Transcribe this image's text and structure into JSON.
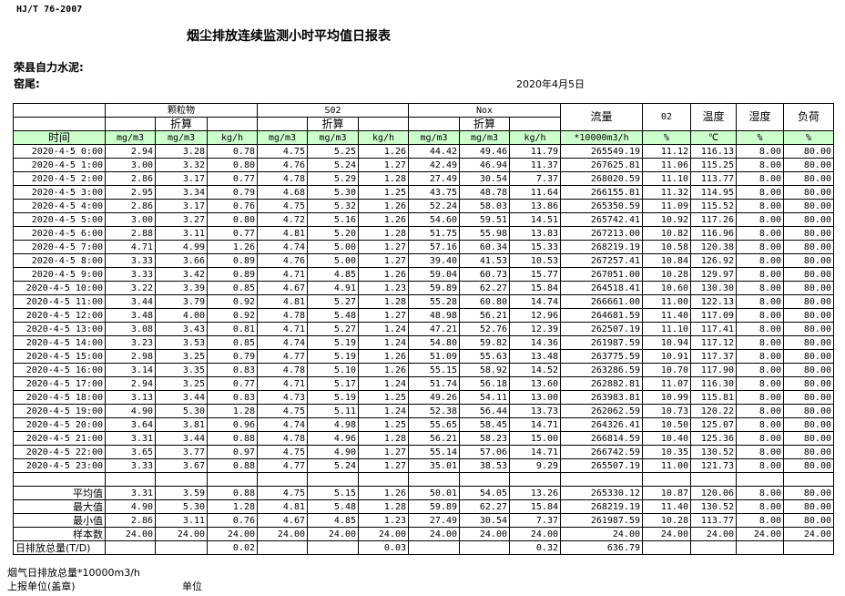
{
  "header": {
    "standard": "HJ/T  76-2007",
    "title": "烟尘排放连续监测小时平均值日报表",
    "company": "荣县自力水泥:",
    "kiln": "窑尾:",
    "date": "2020年4月5日"
  },
  "table": {
    "groups": {
      "particulate": "颗粒物",
      "so2": "S02",
      "nox": "Nox",
      "flow": "流量",
      "o2": "02",
      "temp": "温度",
      "humidity": "湿度",
      "load": "负荷",
      "converted": "折算"
    },
    "units": [
      "时间",
      "mg/m3",
      "mg/m3",
      "kg/h",
      "mg/m3",
      "mg/m3",
      "kg/h",
      "mg/m3",
      "mg/m3",
      "kg/h",
      "*10000m3/h",
      "%",
      "℃",
      "%",
      "%"
    ],
    "rows": [
      [
        "2020-4-5 0:00",
        "2.94",
        "3.28",
        "0.78",
        "4.75",
        "5.25",
        "1.26",
        "44.42",
        "49.46",
        "11.79",
        "265549.19",
        "11.12",
        "116.13",
        "8.00",
        "80.00"
      ],
      [
        "2020-4-5 1:00",
        "3.00",
        "3.32",
        "0.80",
        "4.76",
        "5.24",
        "1.27",
        "42.49",
        "46.94",
        "11.37",
        "267625.81",
        "11.06",
        "115.25",
        "8.00",
        "80.00"
      ],
      [
        "2020-4-5 2:00",
        "2.86",
        "3.17",
        "0.77",
        "4.78",
        "5.29",
        "1.28",
        "27.49",
        "30.54",
        "7.37",
        "268020.59",
        "11.10",
        "113.77",
        "8.00",
        "80.00"
      ],
      [
        "2020-4-5 3:00",
        "2.95",
        "3.34",
        "0.79",
        "4.68",
        "5.30",
        "1.25",
        "43.75",
        "48.78",
        "11.64",
        "266155.81",
        "11.32",
        "114.95",
        "8.00",
        "80.00"
      ],
      [
        "2020-4-5 4:00",
        "2.86",
        "3.17",
        "0.76",
        "4.75",
        "5.32",
        "1.26",
        "52.24",
        "58.03",
        "13.86",
        "265350.59",
        "11.09",
        "115.52",
        "8.00",
        "80.00"
      ],
      [
        "2020-4-5 5:00",
        "3.00",
        "3.27",
        "0.80",
        "4.72",
        "5.16",
        "1.26",
        "54.60",
        "59.51",
        "14.51",
        "265742.41",
        "10.92",
        "117.26",
        "8.00",
        "80.00"
      ],
      [
        "2020-4-5 6:00",
        "2.88",
        "3.11",
        "0.77",
        "4.81",
        "5.20",
        "1.28",
        "51.75",
        "55.98",
        "13.83",
        "267213.00",
        "10.82",
        "116.96",
        "8.00",
        "80.00"
      ],
      [
        "2020-4-5 7:00",
        "4.71",
        "4.99",
        "1.26",
        "4.74",
        "5.00",
        "1.27",
        "57.16",
        "60.34",
        "15.33",
        "268219.19",
        "10.58",
        "120.38",
        "8.00",
        "80.00"
      ],
      [
        "2020-4-5 8:00",
        "3.33",
        "3.66",
        "0.89",
        "4.76",
        "5.00",
        "1.27",
        "39.40",
        "41.53",
        "10.53",
        "267257.41",
        "10.84",
        "126.92",
        "8.00",
        "80.00"
      ],
      [
        "2020-4-5 9:00",
        "3.33",
        "3.42",
        "0.89",
        "4.71",
        "4.85",
        "1.26",
        "59.04",
        "60.73",
        "15.77",
        "267051.00",
        "10.28",
        "129.97",
        "8.00",
        "80.00"
      ],
      [
        "2020-4-5 10:00",
        "3.22",
        "3.39",
        "0.85",
        "4.67",
        "4.91",
        "1.23",
        "59.89",
        "62.27",
        "15.84",
        "264518.41",
        "10.60",
        "130.30",
        "8.00",
        "80.00"
      ],
      [
        "2020-4-5 11:00",
        "3.44",
        "3.79",
        "0.92",
        "4.81",
        "5.27",
        "1.28",
        "55.28",
        "60.80",
        "14.74",
        "266661.00",
        "11.00",
        "122.13",
        "8.00",
        "80.00"
      ],
      [
        "2020-4-5 12:00",
        "3.48",
        "4.00",
        "0.92",
        "4.78",
        "5.48",
        "1.27",
        "48.98",
        "56.21",
        "12.96",
        "264681.59",
        "11.40",
        "117.09",
        "8.00",
        "80.00"
      ],
      [
        "2020-4-5 13:00",
        "3.08",
        "3.43",
        "0.81",
        "4.71",
        "5.27",
        "1.24",
        "47.21",
        "52.76",
        "12.39",
        "262507.19",
        "11.10",
        "117.41",
        "8.00",
        "80.00"
      ],
      [
        "2020-4-5 14:00",
        "3.23",
        "3.53",
        "0.85",
        "4.74",
        "5.19",
        "1.24",
        "54.80",
        "59.82",
        "14.36",
        "261987.59",
        "10.94",
        "117.12",
        "8.00",
        "80.00"
      ],
      [
        "2020-4-5 15:00",
        "2.98",
        "3.25",
        "0.79",
        "4.77",
        "5.19",
        "1.26",
        "51.09",
        "55.63",
        "13.48",
        "263775.59",
        "10.91",
        "117.37",
        "8.00",
        "80.00"
      ],
      [
        "2020-4-5 16:00",
        "3.14",
        "3.35",
        "0.83",
        "4.78",
        "5.10",
        "1.26",
        "55.15",
        "58.92",
        "14.52",
        "263286.59",
        "10.70",
        "117.90",
        "8.00",
        "80.00"
      ],
      [
        "2020-4-5 17:00",
        "2.94",
        "3.25",
        "0.77",
        "4.71",
        "5.17",
        "1.24",
        "51.74",
        "56.18",
        "13.60",
        "262882.81",
        "11.07",
        "116.30",
        "8.00",
        "80.00"
      ],
      [
        "2020-4-5 18:00",
        "3.13",
        "3.44",
        "0.83",
        "4.73",
        "5.19",
        "1.25",
        "49.26",
        "54.11",
        "13.00",
        "263983.81",
        "10.99",
        "115.81",
        "8.00",
        "80.00"
      ],
      [
        "2020-4-5 19:00",
        "4.90",
        "5.30",
        "1.28",
        "4.75",
        "5.11",
        "1.24",
        "52.38",
        "56.44",
        "13.73",
        "262062.59",
        "10.73",
        "120.22",
        "8.00",
        "80.00"
      ],
      [
        "2020-4-5 20:00",
        "3.64",
        "3.81",
        "0.96",
        "4.74",
        "4.98",
        "1.25",
        "55.65",
        "58.45",
        "14.71",
        "264326.41",
        "10.50",
        "125.07",
        "8.00",
        "80.00"
      ],
      [
        "2020-4-5 21:00",
        "3.31",
        "3.44",
        "0.88",
        "4.78",
        "4.96",
        "1.28",
        "56.21",
        "58.23",
        "15.00",
        "266814.59",
        "10.40",
        "125.36",
        "8.00",
        "80.00"
      ],
      [
        "2020-4-5 22:00",
        "3.65",
        "3.77",
        "0.97",
        "4.75",
        "4.90",
        "1.27",
        "55.14",
        "57.06",
        "14.71",
        "266742.59",
        "10.35",
        "130.52",
        "8.00",
        "80.00"
      ],
      [
        "2020-4-5 23:00",
        "3.33",
        "3.67",
        "0.88",
        "4.77",
        "5.24",
        "1.27",
        "35.01",
        "38.53",
        "9.29",
        "265507.19",
        "11.00",
        "121.73",
        "8.00",
        "80.00"
      ]
    ],
    "summary": [
      [
        "平均值",
        "3.31",
        "3.59",
        "0.88",
        "4.75",
        "5.15",
        "1.26",
        "50.01",
        "54.05",
        "13.26",
        "265330.12",
        "10.87",
        "120.06",
        "8.00",
        "80.00"
      ],
      [
        "最大值",
        "4.90",
        "5.30",
        "1.28",
        "4.81",
        "5.48",
        "1.28",
        "59.89",
        "62.27",
        "15.84",
        "268219.19",
        "11.40",
        "130.52",
        "8.00",
        "80.00"
      ],
      [
        "最小值",
        "2.86",
        "3.11",
        "0.76",
        "4.67",
        "4.85",
        "1.23",
        "27.49",
        "30.54",
        "7.37",
        "261987.59",
        "10.28",
        "113.77",
        "8.00",
        "80.00"
      ],
      [
        "样本数",
        "24.00",
        "24.00",
        "24.00",
        "24.00",
        "24.00",
        "24.00",
        "24.00",
        "24.00",
        "24.00",
        "24.00",
        "24.00",
        "24.00",
        "24.00",
        "24.00"
      ],
      [
        "日排放总量(T/D)",
        "",
        "",
        "0.02",
        "",
        "",
        "0.03",
        "",
        "",
        "0.32",
        "636.79",
        "",
        "",
        "",
        ""
      ]
    ]
  },
  "footer": {
    "flue_total": "烟气日排放总量*10000m3/h",
    "reporting_unit": "上报单位(盖章)",
    "unit": "单位"
  },
  "colors": {
    "header_green": "#ccffcc"
  }
}
